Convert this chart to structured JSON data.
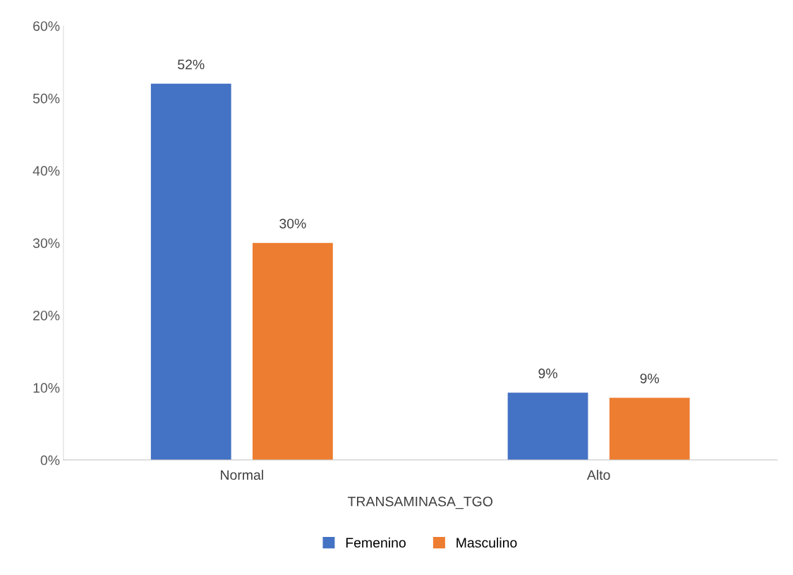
{
  "chart_data": {
    "type": "bar",
    "xlabel": "TRANSAMINASA_TGO",
    "categories": [
      "Normal",
      "Alto"
    ],
    "series": [
      {
        "name": "Femenino",
        "color": "#4472c4",
        "values": [
          52,
          9.3
        ],
        "value_labels": [
          "52%",
          "9%"
        ]
      },
      {
        "name": "Masculino",
        "color": "#ed7d31",
        "values": [
          30,
          8.6
        ],
        "value_labels": [
          "30%",
          "9%"
        ]
      }
    ],
    "ylim": [
      0,
      60
    ],
    "yticks": [
      {
        "value": 0,
        "label": "0%"
      },
      {
        "value": 10,
        "label": "10%"
      },
      {
        "value": 20,
        "label": "20%"
      },
      {
        "value": 30,
        "label": "30%"
      },
      {
        "value": 40,
        "label": "40%"
      },
      {
        "value": 50,
        "label": "50%"
      },
      {
        "value": 60,
        "label": "60%"
      }
    ],
    "grid": false,
    "legend": "bottom"
  }
}
